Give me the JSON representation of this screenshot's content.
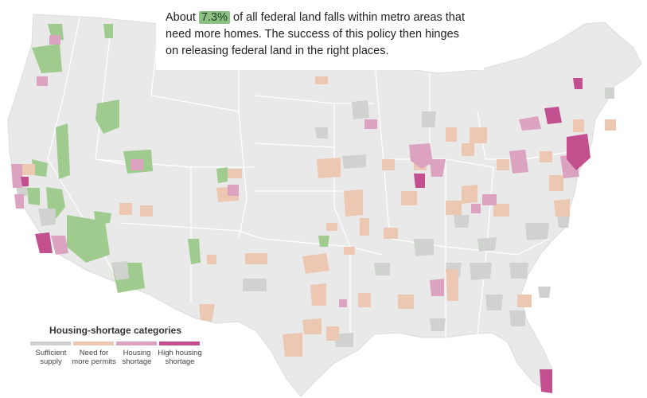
{
  "callout": {
    "before": "About ",
    "value": "7.3%",
    "after": " of all federal land falls within metro areas that need more homes. The success of this policy then hinges on releasing federal land in the right places."
  },
  "legend": {
    "title": "Housing-shortage categories",
    "items": [
      {
        "label": "Sufficient supply",
        "color": "#d0d2d0"
      },
      {
        "label": "Need for more permits",
        "color": "#ecc8b3"
      },
      {
        "label": "Housing shortage",
        "color": "#dba3c0"
      },
      {
        "label": "High housing shortage",
        "color": "#c2508e"
      }
    ]
  },
  "colors": {
    "land": "#e9e9e9",
    "federal_land": "#9fcb8e",
    "highlight": "#8cc084"
  }
}
